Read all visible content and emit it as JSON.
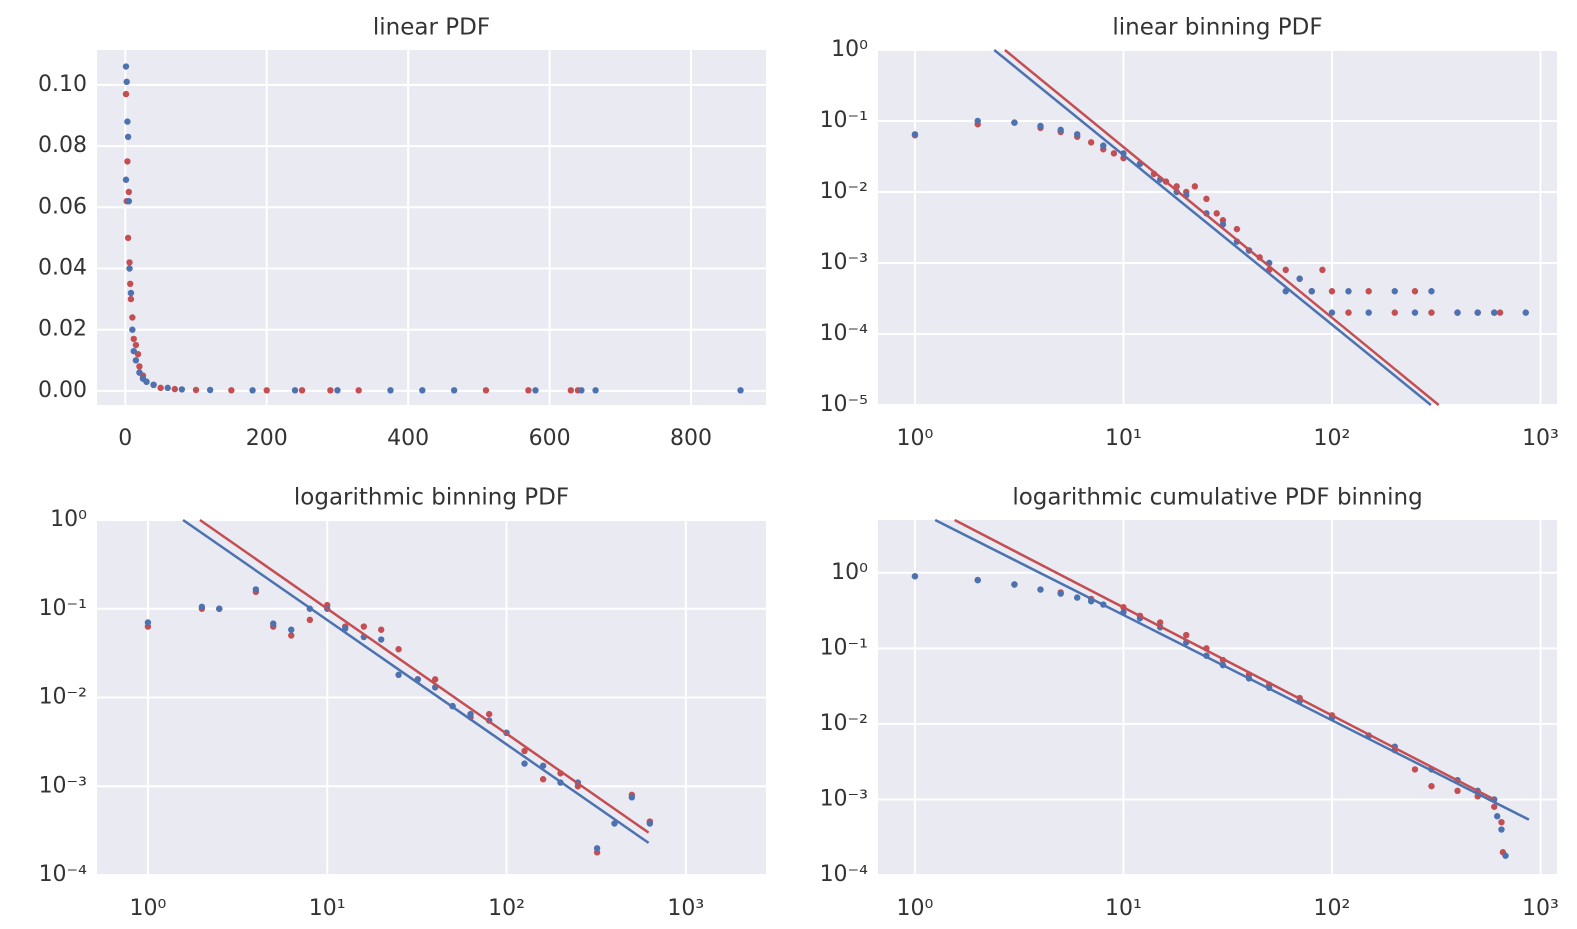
{
  "chart_data": [
    {
      "type": "scatter",
      "title": "linear PDF",
      "xscale": "linear",
      "yscale": "linear",
      "grid": true,
      "xlim": [
        -40,
        906
      ],
      "ylim": [
        -0.0046,
        0.1114
      ],
      "xticks": [
        0,
        200,
        400,
        600,
        800
      ],
      "yticks": [
        {
          "value": 0,
          "label": "0.00"
        },
        {
          "value": 0.02,
          "label": "0.02"
        },
        {
          "value": 0.04,
          "label": "0.04"
        },
        {
          "value": 0.06,
          "label": "0.06"
        },
        {
          "value": 0.08,
          "label": "0.08"
        },
        {
          "value": 0.1,
          "label": "0.10"
        }
      ],
      "series": [
        {
          "color": "#c44e52",
          "mode": "markers",
          "x": [
            1,
            2,
            3,
            4,
            5,
            6,
            7,
            8,
            10,
            12,
            15,
            18,
            20,
            25,
            30,
            40,
            50,
            70,
            100,
            150,
            200,
            250,
            290,
            330,
            510,
            570,
            630,
            640
          ],
          "values": [
            0.097,
            0.062,
            0.075,
            0.05,
            0.065,
            0.042,
            0.035,
            0.03,
            0.024,
            0.017,
            0.015,
            0.012,
            0.008,
            0.005,
            0.003,
            0.002,
            0.001,
            0.0006,
            0.0003,
            0.0002,
            0.0002,
            0.0002,
            0.0002,
            0.0002,
            0.0002,
            0.0002,
            0.0002,
            0.0002
          ]
        },
        {
          "color": "#4c72b0",
          "mode": "markers",
          "x": [
            1,
            2,
            3,
            4,
            1,
            5,
            6,
            8,
            10,
            12,
            15,
            20,
            25,
            30,
            40,
            60,
            80,
            120,
            180,
            240,
            300,
            375,
            420,
            465,
            580,
            645,
            665,
            870
          ],
          "values": [
            0.106,
            0.101,
            0.088,
            0.083,
            0.069,
            0.062,
            0.04,
            0.032,
            0.02,
            0.013,
            0.01,
            0.006,
            0.004,
            0.003,
            0.002,
            0.001,
            0.0005,
            0.0003,
            0.0002,
            0.0002,
            0.0002,
            0.0002,
            0.0002,
            0.0002,
            0.0002,
            0.0002,
            0.0002,
            0.0002
          ]
        }
      ]
    },
    {
      "type": "scatter",
      "title": "linear binning PDF",
      "xscale": "log",
      "yscale": "log",
      "grid": true,
      "xlim": [
        0.665,
        1200
      ],
      "ylim": [
        1e-05,
        1
      ],
      "xticks": [
        {
          "value": 1,
          "label": "10⁰"
        },
        {
          "value": 10,
          "label": "10¹"
        },
        {
          "value": 100,
          "label": "10²"
        },
        {
          "value": 1000,
          "label": "10³"
        }
      ],
      "yticks": [
        {
          "value": 1e-05,
          "label": "10⁻⁵"
        },
        {
          "value": 0.0001,
          "label": "10⁻⁴"
        },
        {
          "value": 0.001,
          "label": "10⁻³"
        },
        {
          "value": 0.01,
          "label": "10⁻²"
        },
        {
          "value": 0.1,
          "label": "10⁻¹"
        },
        {
          "value": 1,
          "label": "10⁰"
        }
      ],
      "series": [
        {
          "color": "#c44e52",
          "mode": "markers",
          "x": [
            1,
            2,
            3,
            4,
            5,
            6,
            7,
            8,
            9,
            10,
            12,
            14,
            16,
            18,
            20,
            22,
            25,
            28,
            30,
            35,
            40,
            45,
            50,
            60,
            70,
            80,
            90,
            100,
            120,
            150,
            200,
            250,
            300,
            400,
            500,
            600,
            640
          ],
          "values": [
            0.063,
            0.09,
            0.095,
            0.08,
            0.07,
            0.06,
            0.05,
            0.04,
            0.035,
            0.03,
            0.025,
            0.018,
            0.014,
            0.012,
            0.01,
            0.012,
            0.008,
            0.005,
            0.004,
            0.003,
            0.0015,
            0.0012,
            0.0008,
            0.0008,
            0.0006,
            0.0004,
            0.0008,
            0.0004,
            0.0002,
            0.0004,
            0.0002,
            0.0004,
            0.0002,
            0.0002,
            0.0002,
            0.0002,
            0.0002
          ]
        },
        {
          "color": "#4c72b0",
          "mode": "markers",
          "x": [
            1,
            2,
            3,
            4,
            5,
            6,
            8,
            10,
            12,
            15,
            18,
            20,
            25,
            30,
            35,
            40,
            50,
            60,
            70,
            80,
            100,
            120,
            150,
            200,
            250,
            300,
            400,
            500,
            600,
            850
          ],
          "values": [
            0.065,
            0.1,
            0.095,
            0.085,
            0.075,
            0.065,
            0.045,
            0.035,
            0.025,
            0.015,
            0.01,
            0.009,
            0.005,
            0.0035,
            0.002,
            0.0015,
            0.001,
            0.0004,
            0.0006,
            0.0004,
            0.0002,
            0.0004,
            0.0002,
            0.0004,
            0.0002,
            0.0004,
            0.0002,
            0.0002,
            0.0002,
            0.0002
          ]
        },
        {
          "color": "#c44e52",
          "mode": "line",
          "x": [
            2.7,
            325
          ],
          "values": [
            1,
            1e-05
          ]
        },
        {
          "color": "#4c72b0",
          "mode": "line",
          "x": [
            2.4,
            298
          ],
          "values": [
            1,
            1e-05
          ]
        }
      ]
    },
    {
      "type": "scatter",
      "title": "logarithmic binning PDF",
      "xscale": "log",
      "yscale": "log",
      "grid": true,
      "xlim": [
        0.52,
        2800
      ],
      "ylim": [
        0.0001,
        1
      ],
      "xticks": [
        {
          "value": 1,
          "label": "10⁰"
        },
        {
          "value": 10,
          "label": "10¹"
        },
        {
          "value": 100,
          "label": "10²"
        },
        {
          "value": 1000,
          "label": "10³"
        }
      ],
      "yticks": [
        {
          "value": 0.0001,
          "label": "10⁻⁴"
        },
        {
          "value": 0.001,
          "label": "10⁻³"
        },
        {
          "value": 0.01,
          "label": "10⁻²"
        },
        {
          "value": 0.1,
          "label": "10⁻¹"
        },
        {
          "value": 1,
          "label": "10⁰"
        }
      ],
      "series": [
        {
          "color": "#c44e52",
          "mode": "markers",
          "x": [
            1,
            2,
            2.5,
            4,
            5,
            6.3,
            8,
            10,
            12.6,
            16,
            20,
            25,
            32,
            40,
            50,
            63,
            80,
            100,
            126,
            160,
            200,
            250,
            320,
            500,
            630
          ],
          "values": [
            0.063,
            0.1,
            0.1,
            0.155,
            0.063,
            0.05,
            0.075,
            0.11,
            0.063,
            0.063,
            0.058,
            0.035,
            0.016,
            0.016,
            0.008,
            0.006,
            0.0065,
            0.004,
            0.0025,
            0.0012,
            0.0014,
            0.001,
            0.00018,
            0.0008,
            0.0004
          ]
        },
        {
          "color": "#4c72b0",
          "mode": "markers",
          "x": [
            1,
            2,
            2.5,
            4,
            5,
            6.3,
            8,
            10,
            12.6,
            16,
            20,
            25,
            32,
            40,
            50,
            63,
            80,
            100,
            126,
            160,
            200,
            250,
            320,
            400,
            500,
            630
          ],
          "values": [
            0.07,
            0.105,
            0.1,
            0.165,
            0.068,
            0.058,
            0.1,
            0.1,
            0.06,
            0.048,
            0.045,
            0.018,
            0.016,
            0.013,
            0.008,
            0.0065,
            0.0055,
            0.004,
            0.0018,
            0.0017,
            0.0011,
            0.0011,
            0.0002,
            0.00038,
            0.00075,
            0.00038
          ]
        },
        {
          "color": "#c44e52",
          "mode": "line",
          "x": [
            1.95,
            620
          ],
          "values": [
            1,
            0.0003
          ]
        },
        {
          "color": "#4c72b0",
          "mode": "line",
          "x": [
            1.57,
            620
          ],
          "values": [
            1,
            0.00023
          ]
        }
      ]
    },
    {
      "type": "scatter",
      "title": "logarithmic cumulative PDF binning",
      "xscale": "log",
      "yscale": "log",
      "grid": true,
      "xlim": [
        0.665,
        1200
      ],
      "ylim": [
        0.0001,
        5
      ],
      "xticks": [
        {
          "value": 1,
          "label": "10⁰"
        },
        {
          "value": 10,
          "label": "10¹"
        },
        {
          "value": 100,
          "label": "10²"
        },
        {
          "value": 1000,
          "label": "10³"
        }
      ],
      "yticks": [
        {
          "value": 0.0001,
          "label": "10⁻⁴"
        },
        {
          "value": 0.001,
          "label": "10⁻³"
        },
        {
          "value": 0.01,
          "label": "10⁻²"
        },
        {
          "value": 0.1,
          "label": "10⁻¹"
        },
        {
          "value": 1,
          "label": "10⁰"
        }
      ],
      "series": [
        {
          "color": "#c44e52",
          "mode": "markers",
          "x": [
            1,
            2,
            3,
            5,
            7,
            10,
            12,
            15,
            20,
            25,
            30,
            40,
            50,
            70,
            100,
            150,
            200,
            250,
            300,
            400,
            500,
            600,
            650,
            660
          ],
          "values": [
            0.9,
            0.8,
            0.7,
            0.55,
            0.45,
            0.35,
            0.27,
            0.22,
            0.15,
            0.1,
            0.07,
            0.045,
            0.033,
            0.022,
            0.013,
            0.007,
            0.0045,
            0.0025,
            0.0015,
            0.0013,
            0.0011,
            0.0008,
            0.0005,
            0.0002
          ]
        },
        {
          "color": "#4c72b0",
          "mode": "markers",
          "x": [
            1,
            2,
            3,
            4,
            5,
            6,
            7,
            8,
            10,
            12,
            15,
            20,
            25,
            30,
            40,
            50,
            70,
            100,
            150,
            200,
            300,
            400,
            500,
            600,
            620,
            650,
            680
          ],
          "values": [
            0.9,
            0.8,
            0.7,
            0.6,
            0.53,
            0.47,
            0.42,
            0.38,
            0.3,
            0.25,
            0.19,
            0.12,
            0.08,
            0.06,
            0.04,
            0.03,
            0.02,
            0.012,
            0.007,
            0.005,
            0.0025,
            0.0018,
            0.0013,
            0.001,
            0.0006,
            0.0004,
            0.00018
          ]
        },
        {
          "color": "#c44e52",
          "mode": "line",
          "x": [
            1.55,
            600
          ],
          "values": [
            5,
            0.001
          ]
        },
        {
          "color": "#4c72b0",
          "mode": "line",
          "x": [
            1.25,
            880
          ],
          "values": [
            5,
            0.00054
          ]
        }
      ]
    }
  ]
}
